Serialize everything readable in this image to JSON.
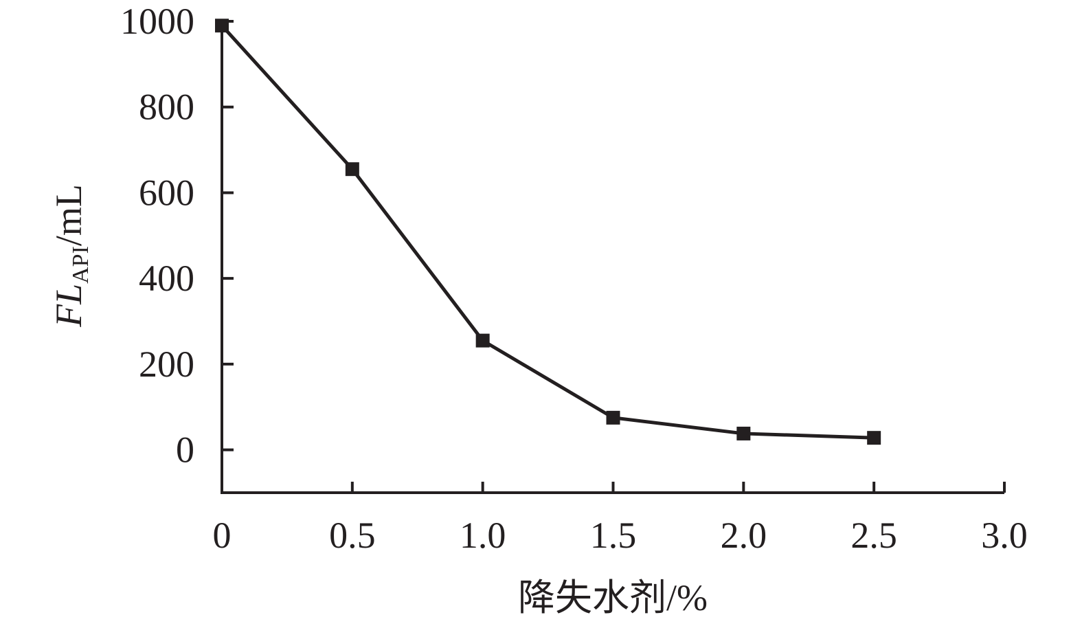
{
  "chart_data": {
    "type": "line",
    "x": [
      0,
      0.5,
      1.0,
      1.5,
      2.0,
      2.5
    ],
    "series": [
      {
        "values": [
          990,
          655,
          255,
          75,
          38,
          28
        ]
      }
    ],
    "xlim": [
      0,
      3.0
    ],
    "ylim": [
      -100,
      1000
    ],
    "x_ticks": [
      0,
      0.5,
      1.0,
      1.5,
      2.0,
      2.5,
      3.0
    ],
    "x_tick_labels": [
      "0",
      "0.5",
      "1.0",
      "1.5",
      "2.0",
      "2.5",
      "3.0"
    ],
    "y_ticks": [
      0,
      200,
      400,
      600,
      800,
      1000
    ],
    "y_tick_labels": [
      "0",
      "200",
      "400",
      "600",
      "800",
      "1000"
    ],
    "xlabel": "降失水剂/%",
    "ylabel": {
      "main": "FL",
      "subscript": "API",
      "unit": "/mL"
    },
    "grid": false,
    "marker": "square",
    "color": "#231f20"
  }
}
